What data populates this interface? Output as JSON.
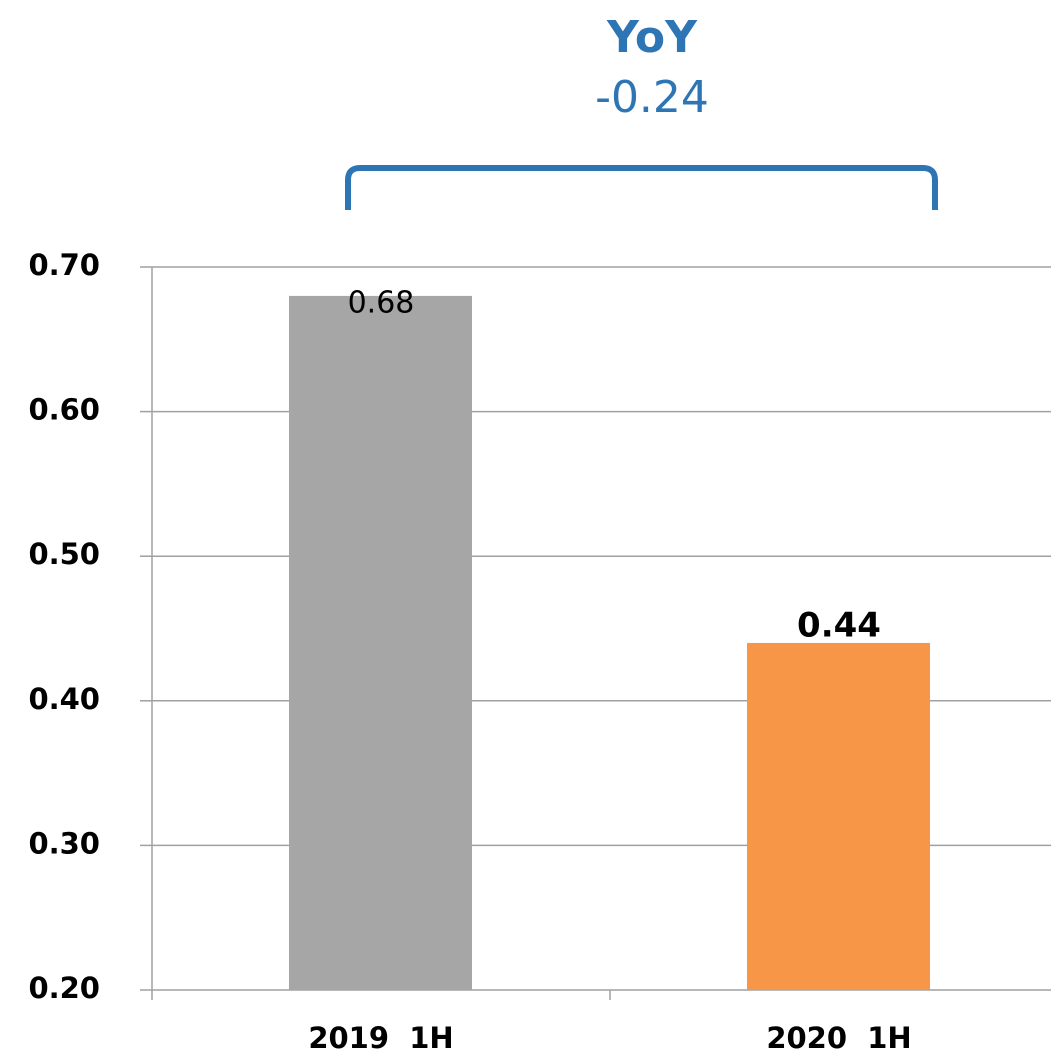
{
  "chart_data": {
    "type": "bar",
    "annotation": [
      "YoY",
      "-0.24"
    ],
    "categories": [
      "2019  1H",
      "2020  1H"
    ],
    "values": [
      0.68,
      0.44
    ],
    "colors": [
      "#a6a6a6",
      "#f79646"
    ],
    "ylim": [
      0.2,
      0.7
    ],
    "yticks": [
      {
        "value": 0.2,
        "label": "0.20"
      },
      {
        "value": 0.3,
        "label": "0.30"
      },
      {
        "value": 0.4,
        "label": "0.40"
      },
      {
        "value": 0.5,
        "label": "0.50"
      },
      {
        "value": 0.6,
        "label": "0.60"
      },
      {
        "value": 0.7,
        "label": "0.70"
      }
    ],
    "grid": true
  }
}
